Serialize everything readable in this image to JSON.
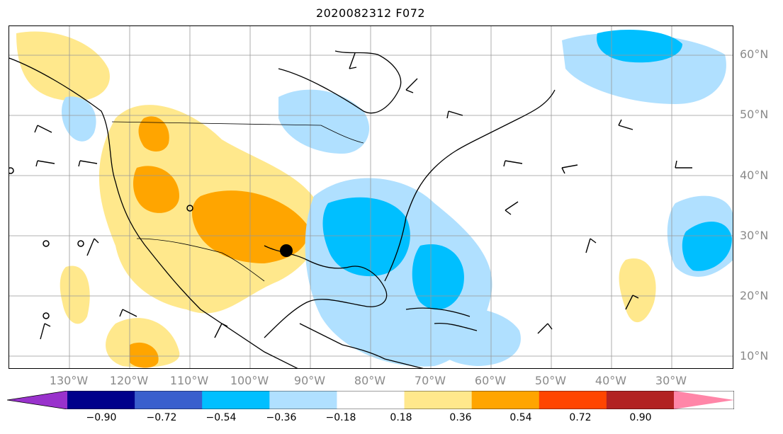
{
  "title": "2020082312 F072",
  "latitude_labels": [
    "60°N",
    "50°N",
    "40°N",
    "30°N",
    "20°N",
    "10°N"
  ],
  "longitude_labels": [
    "130°W",
    "120°W",
    "110°W",
    "100°W",
    "90°W",
    "80°W",
    "70°W",
    "60°W",
    "50°W",
    "40°W",
    "30°W"
  ],
  "colorbar": {
    "tick_labels": [
      "−0.90",
      "−0.72",
      "−0.54",
      "−0.36",
      "−0.18",
      "0.18",
      "0.36",
      "0.54",
      "0.72",
      "0.90"
    ],
    "colors": [
      "#9932cc",
      "#00008b",
      "#3a5fcd",
      "#00bfff",
      "#b0e0ff",
      "#ffffff",
      "#ffe88c",
      "#ffa500",
      "#ff4500",
      "#b22222",
      "#ff86a8"
    ],
    "extend": "both"
  },
  "colors": {
    "ocean": "#ffffff",
    "coast": "#000000",
    "grid": "#999999",
    "positive_weak": "#ffe88c",
    "positive_mid": "#ffa500",
    "negative_weak": "#b0e0ff",
    "negative_mid": "#00bfff"
  },
  "marker": {
    "type": "filled-circle",
    "color": "#000000",
    "location": "Gulf Coast / Texas"
  }
}
